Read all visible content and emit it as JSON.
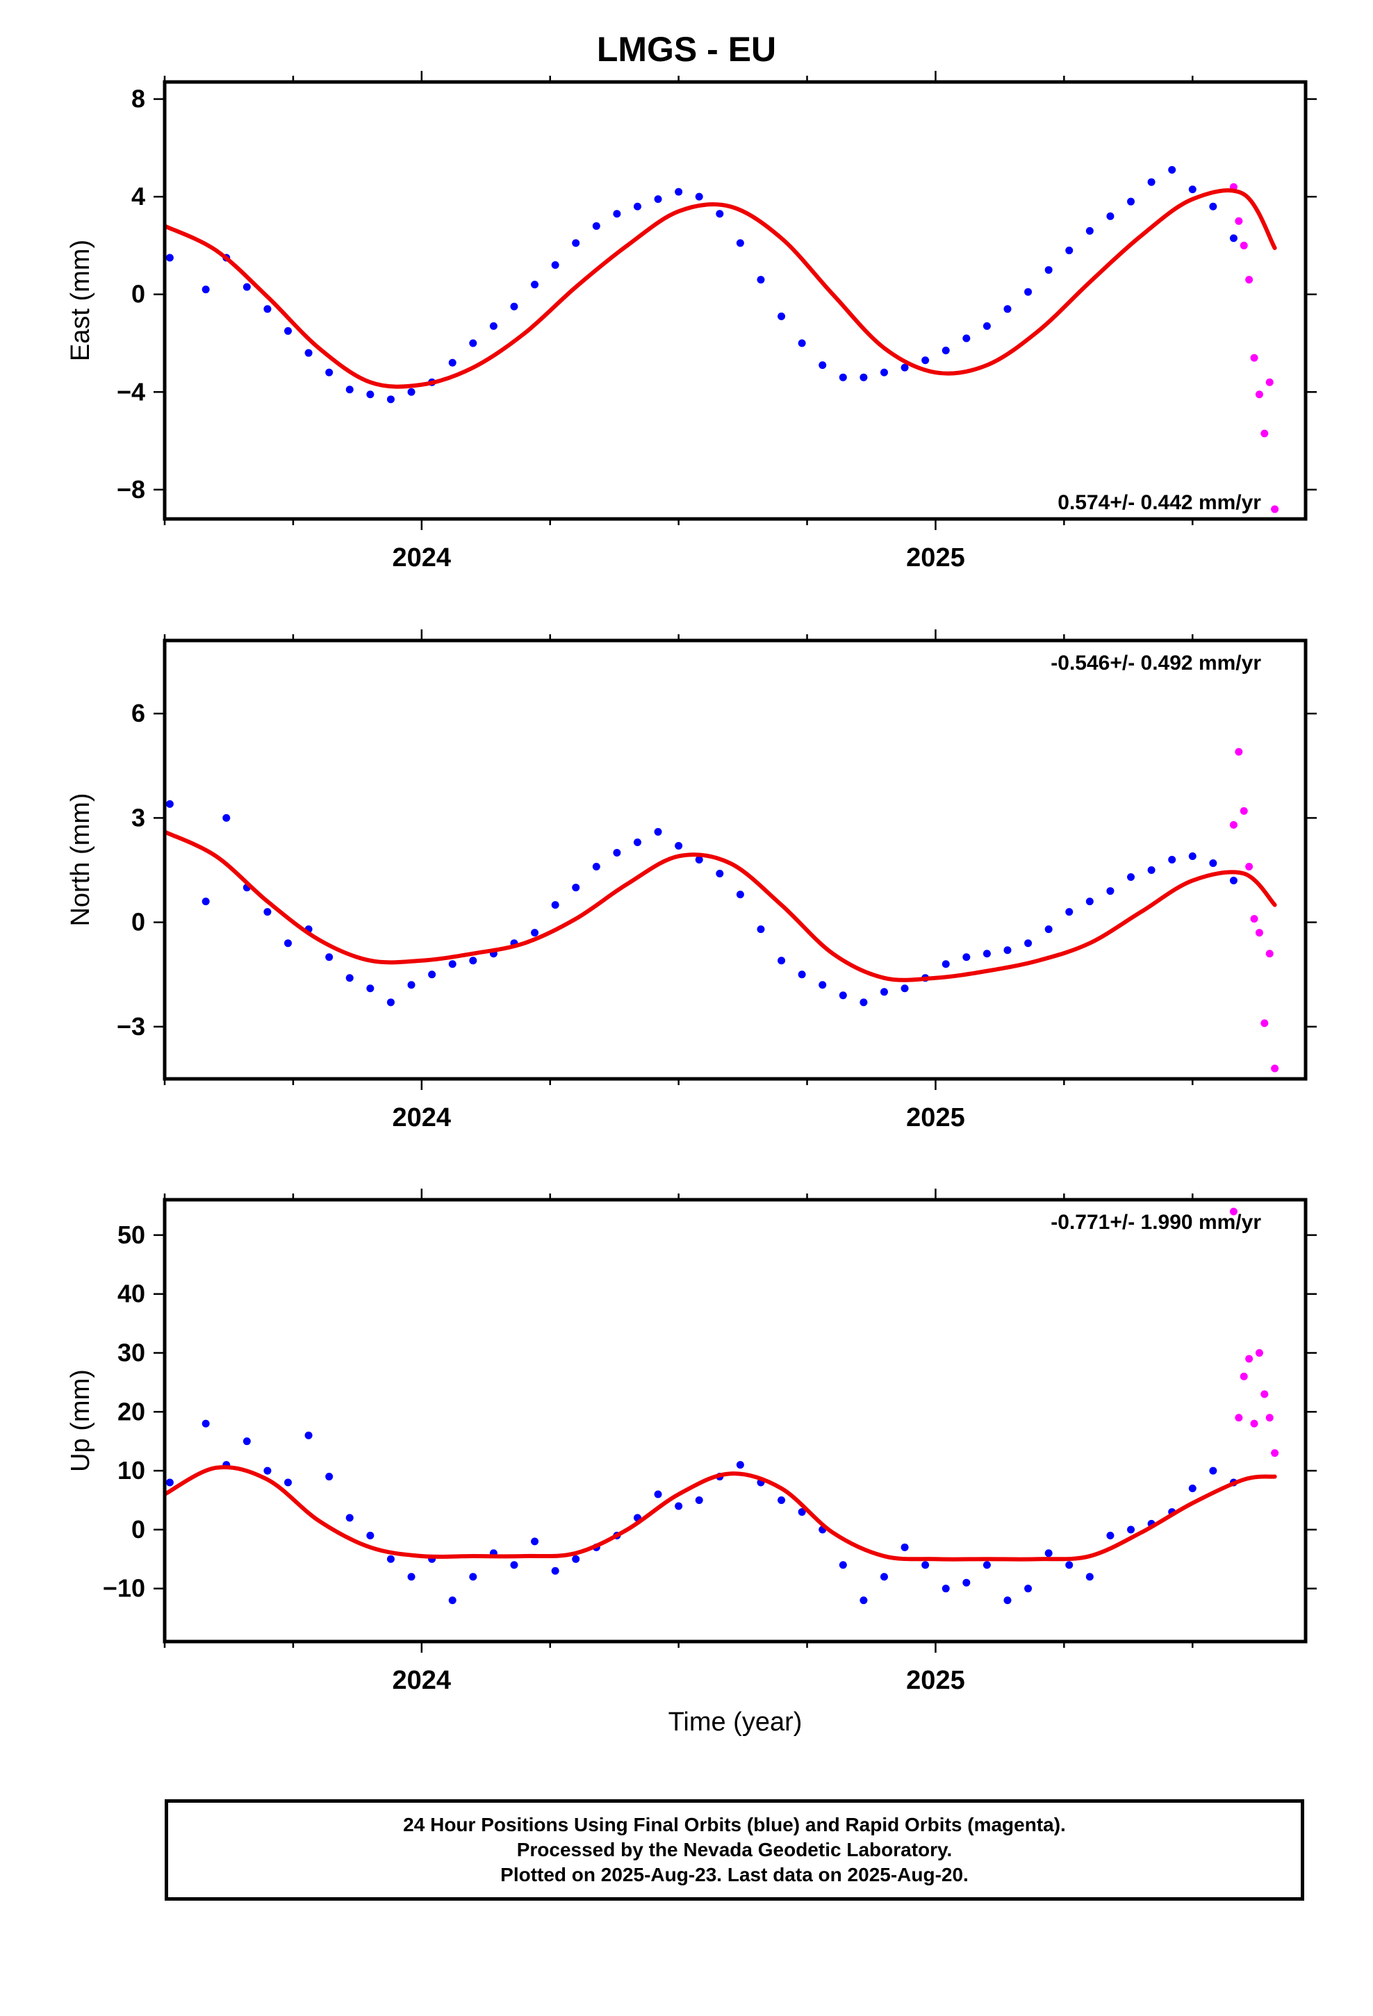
{
  "title": "LMGS - EU",
  "colors": {
    "final": "#0000ff",
    "rapid": "#ff00ff",
    "fit": "#ee0000"
  },
  "chart_data": [
    {
      "type": "scatter",
      "ylabel": "East (mm)",
      "xlabel": "",
      "xlim": [
        2023.5,
        2025.72
      ],
      "ylim": [
        -9.2,
        8.7
      ],
      "yticks": [
        8,
        4,
        0,
        -4,
        -8
      ],
      "xticks": [
        2024,
        2025
      ],
      "rate": "0.574+/- 0.442 mm/yr",
      "rate_pos": "bottom-right",
      "series": [
        {
          "kind": "final",
          "x": [
            2023.51,
            2023.58,
            2023.62,
            2023.66,
            2023.7,
            2023.74,
            2023.78,
            2023.82,
            2023.86,
            2023.9,
            2023.94,
            2023.98,
            2024.02,
            2024.06,
            2024.1,
            2024.14,
            2024.18,
            2024.22,
            2024.26,
            2024.3,
            2024.34,
            2024.38,
            2024.42,
            2024.46,
            2024.5,
            2024.54,
            2024.58,
            2024.62,
            2024.66,
            2024.7,
            2024.74,
            2024.78,
            2024.82,
            2024.86,
            2024.9,
            2024.94,
            2024.98,
            2025.02,
            2025.06,
            2025.1,
            2025.14,
            2025.18,
            2025.22,
            2025.26,
            2025.3,
            2025.34,
            2025.38,
            2025.42,
            2025.46,
            2025.5,
            2025.54,
            2025.58
          ],
          "y": [
            1.5,
            0.2,
            1.5,
            0.3,
            -0.6,
            -1.5,
            -2.4,
            -3.2,
            -3.9,
            -4.1,
            -4.3,
            -4.0,
            -3.6,
            -2.8,
            -2.0,
            -1.3,
            -0.5,
            0.4,
            1.2,
            2.1,
            2.8,
            3.3,
            3.6,
            3.9,
            4.2,
            4.0,
            3.3,
            2.1,
            0.6,
            -0.9,
            -2.0,
            -2.9,
            -3.4,
            -3.4,
            -3.2,
            -3.0,
            -2.7,
            -2.3,
            -1.8,
            -1.3,
            -0.6,
            0.1,
            1.0,
            1.8,
            2.6,
            3.2,
            3.8,
            4.6,
            5.1,
            4.3,
            3.6,
            2.3
          ]
        },
        {
          "kind": "rapid",
          "x": [
            2025.58,
            2025.59,
            2025.6,
            2025.61,
            2025.62,
            2025.63,
            2025.64,
            2025.65,
            2025.66
          ],
          "y": [
            4.4,
            3.0,
            2.0,
            0.6,
            -2.6,
            -4.1,
            -5.7,
            -3.6,
            -8.8
          ]
        },
        {
          "kind": "fit",
          "x": [
            2023.5,
            2023.6,
            2023.7,
            2023.8,
            2023.9,
            2024.0,
            2024.1,
            2024.2,
            2024.3,
            2024.4,
            2024.5,
            2024.6,
            2024.7,
            2024.8,
            2024.9,
            2025.0,
            2025.1,
            2025.2,
            2025.3,
            2025.4,
            2025.5,
            2025.6,
            2025.66
          ],
          "y": [
            2.8,
            1.8,
            -0.1,
            -2.2,
            -3.6,
            -3.7,
            -3.0,
            -1.6,
            0.3,
            2.0,
            3.4,
            3.6,
            2.3,
            0.0,
            -2.2,
            -3.2,
            -2.9,
            -1.5,
            0.5,
            2.4,
            3.9,
            4.1,
            1.9
          ]
        }
      ]
    },
    {
      "type": "scatter",
      "ylabel": "North (mm)",
      "xlabel": "",
      "xlim": [
        2023.5,
        2025.72
      ],
      "ylim": [
        -4.5,
        8.1
      ],
      "yticks": [
        6,
        3,
        0,
        -3
      ],
      "xticks": [
        2024,
        2025
      ],
      "rate": "-0.546+/- 0.492 mm/yr",
      "rate_pos": "top-right",
      "series": [
        {
          "kind": "final",
          "x": [
            2023.51,
            2023.58,
            2023.62,
            2023.66,
            2023.7,
            2023.74,
            2023.78,
            2023.82,
            2023.86,
            2023.9,
            2023.94,
            2023.98,
            2024.02,
            2024.06,
            2024.1,
            2024.14,
            2024.18,
            2024.22,
            2024.26,
            2024.3,
            2024.34,
            2024.38,
            2024.42,
            2024.46,
            2024.5,
            2024.54,
            2024.58,
            2024.62,
            2024.66,
            2024.7,
            2024.74,
            2024.78,
            2024.82,
            2024.86,
            2024.9,
            2024.94,
            2024.98,
            2025.02,
            2025.06,
            2025.1,
            2025.14,
            2025.18,
            2025.22,
            2025.26,
            2025.3,
            2025.34,
            2025.38,
            2025.42,
            2025.46,
            2025.5,
            2025.54,
            2025.58
          ],
          "y": [
            3.4,
            0.6,
            3.0,
            1.0,
            0.3,
            -0.6,
            -0.2,
            -1.0,
            -1.6,
            -1.9,
            -2.3,
            -1.8,
            -1.5,
            -1.2,
            -1.1,
            -0.9,
            -0.6,
            -0.3,
            0.5,
            1.0,
            1.6,
            2.0,
            2.3,
            2.6,
            2.2,
            1.8,
            1.4,
            0.8,
            -0.2,
            -1.1,
            -1.5,
            -1.8,
            -2.1,
            -2.3,
            -2.0,
            -1.9,
            -1.6,
            -1.2,
            -1.0,
            -0.9,
            -0.8,
            -0.6,
            -0.2,
            0.3,
            0.6,
            0.9,
            1.3,
            1.5,
            1.8,
            1.9,
            1.7,
            1.2
          ]
        },
        {
          "kind": "rapid",
          "x": [
            2025.58,
            2025.59,
            2025.6,
            2025.61,
            2025.62,
            2025.63,
            2025.64,
            2025.65,
            2025.66
          ],
          "y": [
            2.8,
            4.9,
            3.2,
            1.6,
            0.1,
            -0.3,
            -2.9,
            -0.9,
            -4.2
          ]
        },
        {
          "kind": "fit",
          "x": [
            2023.5,
            2023.6,
            2023.7,
            2023.8,
            2023.9,
            2024.0,
            2024.1,
            2024.2,
            2024.3,
            2024.4,
            2024.5,
            2024.6,
            2024.7,
            2024.8,
            2024.9,
            2025.0,
            2025.1,
            2025.2,
            2025.3,
            2025.4,
            2025.5,
            2025.6,
            2025.66
          ],
          "y": [
            2.6,
            1.9,
            0.6,
            -0.5,
            -1.1,
            -1.1,
            -0.9,
            -0.6,
            0.1,
            1.1,
            1.9,
            1.7,
            0.5,
            -0.9,
            -1.6,
            -1.6,
            -1.4,
            -1.1,
            -0.6,
            0.3,
            1.2,
            1.4,
            0.5
          ]
        }
      ]
    },
    {
      "type": "scatter",
      "ylabel": "Up (mm)",
      "xlabel": "Time (year)",
      "xlim": [
        2023.5,
        2025.72
      ],
      "ylim": [
        -19,
        56
      ],
      "yticks": [
        50,
        40,
        30,
        20,
        10,
        0,
        -10
      ],
      "xticks": [
        2024,
        2025
      ],
      "rate": "-0.771+/- 1.990 mm/yr",
      "rate_pos": "top-right",
      "series": [
        {
          "kind": "final",
          "x": [
            2023.51,
            2023.58,
            2023.62,
            2023.66,
            2023.7,
            2023.74,
            2023.78,
            2023.82,
            2023.86,
            2023.9,
            2023.94,
            2023.98,
            2024.02,
            2024.06,
            2024.1,
            2024.14,
            2024.18,
            2024.22,
            2024.26,
            2024.3,
            2024.34,
            2024.38,
            2024.42,
            2024.46,
            2024.5,
            2024.54,
            2024.58,
            2024.62,
            2024.66,
            2024.7,
            2024.74,
            2024.78,
            2024.82,
            2024.86,
            2024.9,
            2024.94,
            2024.98,
            2025.02,
            2025.06,
            2025.1,
            2025.14,
            2025.18,
            2025.22,
            2025.26,
            2025.3,
            2025.34,
            2025.38,
            2025.42,
            2025.46,
            2025.5,
            2025.54,
            2025.58
          ],
          "y": [
            8,
            18,
            11,
            15,
            10,
            8,
            16,
            9,
            2,
            -1,
            -5,
            -8,
            -5,
            -12,
            -8,
            -4,
            -6,
            -2,
            -7,
            -5,
            -3,
            -1,
            2,
            6,
            4,
            5,
            9,
            11,
            8,
            5,
            3,
            0,
            -6,
            -12,
            -8,
            -3,
            -6,
            -10,
            -9,
            -6,
            -12,
            -10,
            -4,
            -6,
            -8,
            -1,
            0,
            1,
            3,
            7,
            10,
            8
          ]
        },
        {
          "kind": "rapid",
          "x": [
            2025.58,
            2025.59,
            2025.6,
            2025.61,
            2025.62,
            2025.63,
            2025.64,
            2025.65,
            2025.66
          ],
          "y": [
            54,
            19,
            26,
            29,
            18,
            30,
            23,
            19,
            13
          ]
        },
        {
          "kind": "fit",
          "x": [
            2023.5,
            2023.6,
            2023.7,
            2023.8,
            2023.9,
            2024.0,
            2024.1,
            2024.2,
            2024.3,
            2024.4,
            2024.5,
            2024.6,
            2024.7,
            2024.8,
            2024.9,
            2025.0,
            2025.1,
            2025.2,
            2025.3,
            2025.4,
            2025.5,
            2025.6,
            2025.66
          ],
          "y": [
            6,
            10.5,
            8.5,
            1.5,
            -3,
            -4.5,
            -4.5,
            -4.5,
            -4,
            0,
            6,
            9.5,
            7,
            -0.5,
            -4.5,
            -5,
            -5,
            -5,
            -4.5,
            -0.5,
            4.5,
            8.5,
            9
          ]
        }
      ]
    }
  ],
  "footer": {
    "line1": "24 Hour Positions Using Final Orbits (blue) and Rapid Orbits (magenta).",
    "line2": "Processed by the Nevada Geodetic Laboratory.",
    "line3": "Plotted on 2025-Aug-23. Last data on 2025-Aug-20."
  }
}
